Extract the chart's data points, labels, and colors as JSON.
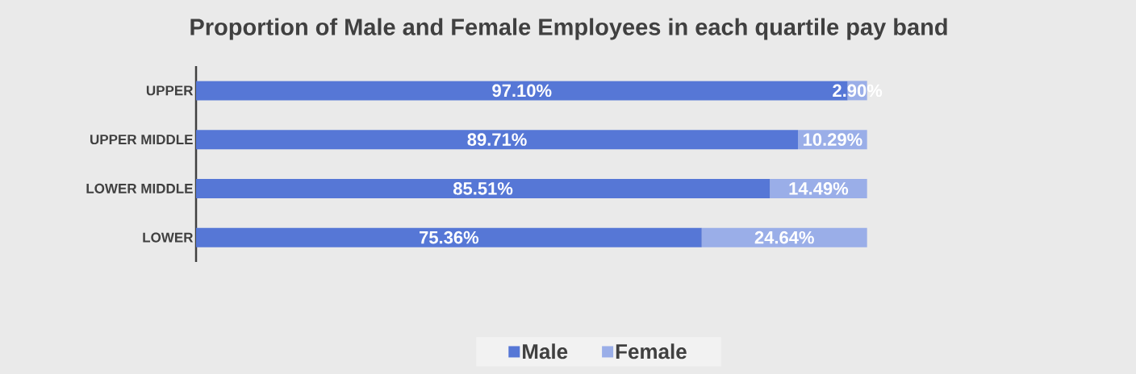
{
  "chart_data": {
    "type": "bar",
    "orientation": "horizontal",
    "stacked": true,
    "title": "Proportion of Male and Female Employees in each quartile pay band",
    "categories": [
      "UPPER",
      "UPPER MIDDLE",
      "LOWER MIDDLE",
      "LOWER"
    ],
    "series": [
      {
        "name": "Male",
        "color": "#5677d6",
        "values": [
          97.1,
          89.71,
          85.51,
          75.36
        ],
        "value_labels": [
          "97.10%",
          "89.71%",
          "85.51%",
          "75.36%"
        ]
      },
      {
        "name": "Female",
        "color": "#9aaee8",
        "values": [
          2.9,
          10.29,
          14.49,
          24.64
        ],
        "value_labels": [
          "2.90%",
          "10.29%",
          "14.49%",
          "24.64%"
        ]
      }
    ],
    "legend": "bottom",
    "tick_labels": "y"
  }
}
